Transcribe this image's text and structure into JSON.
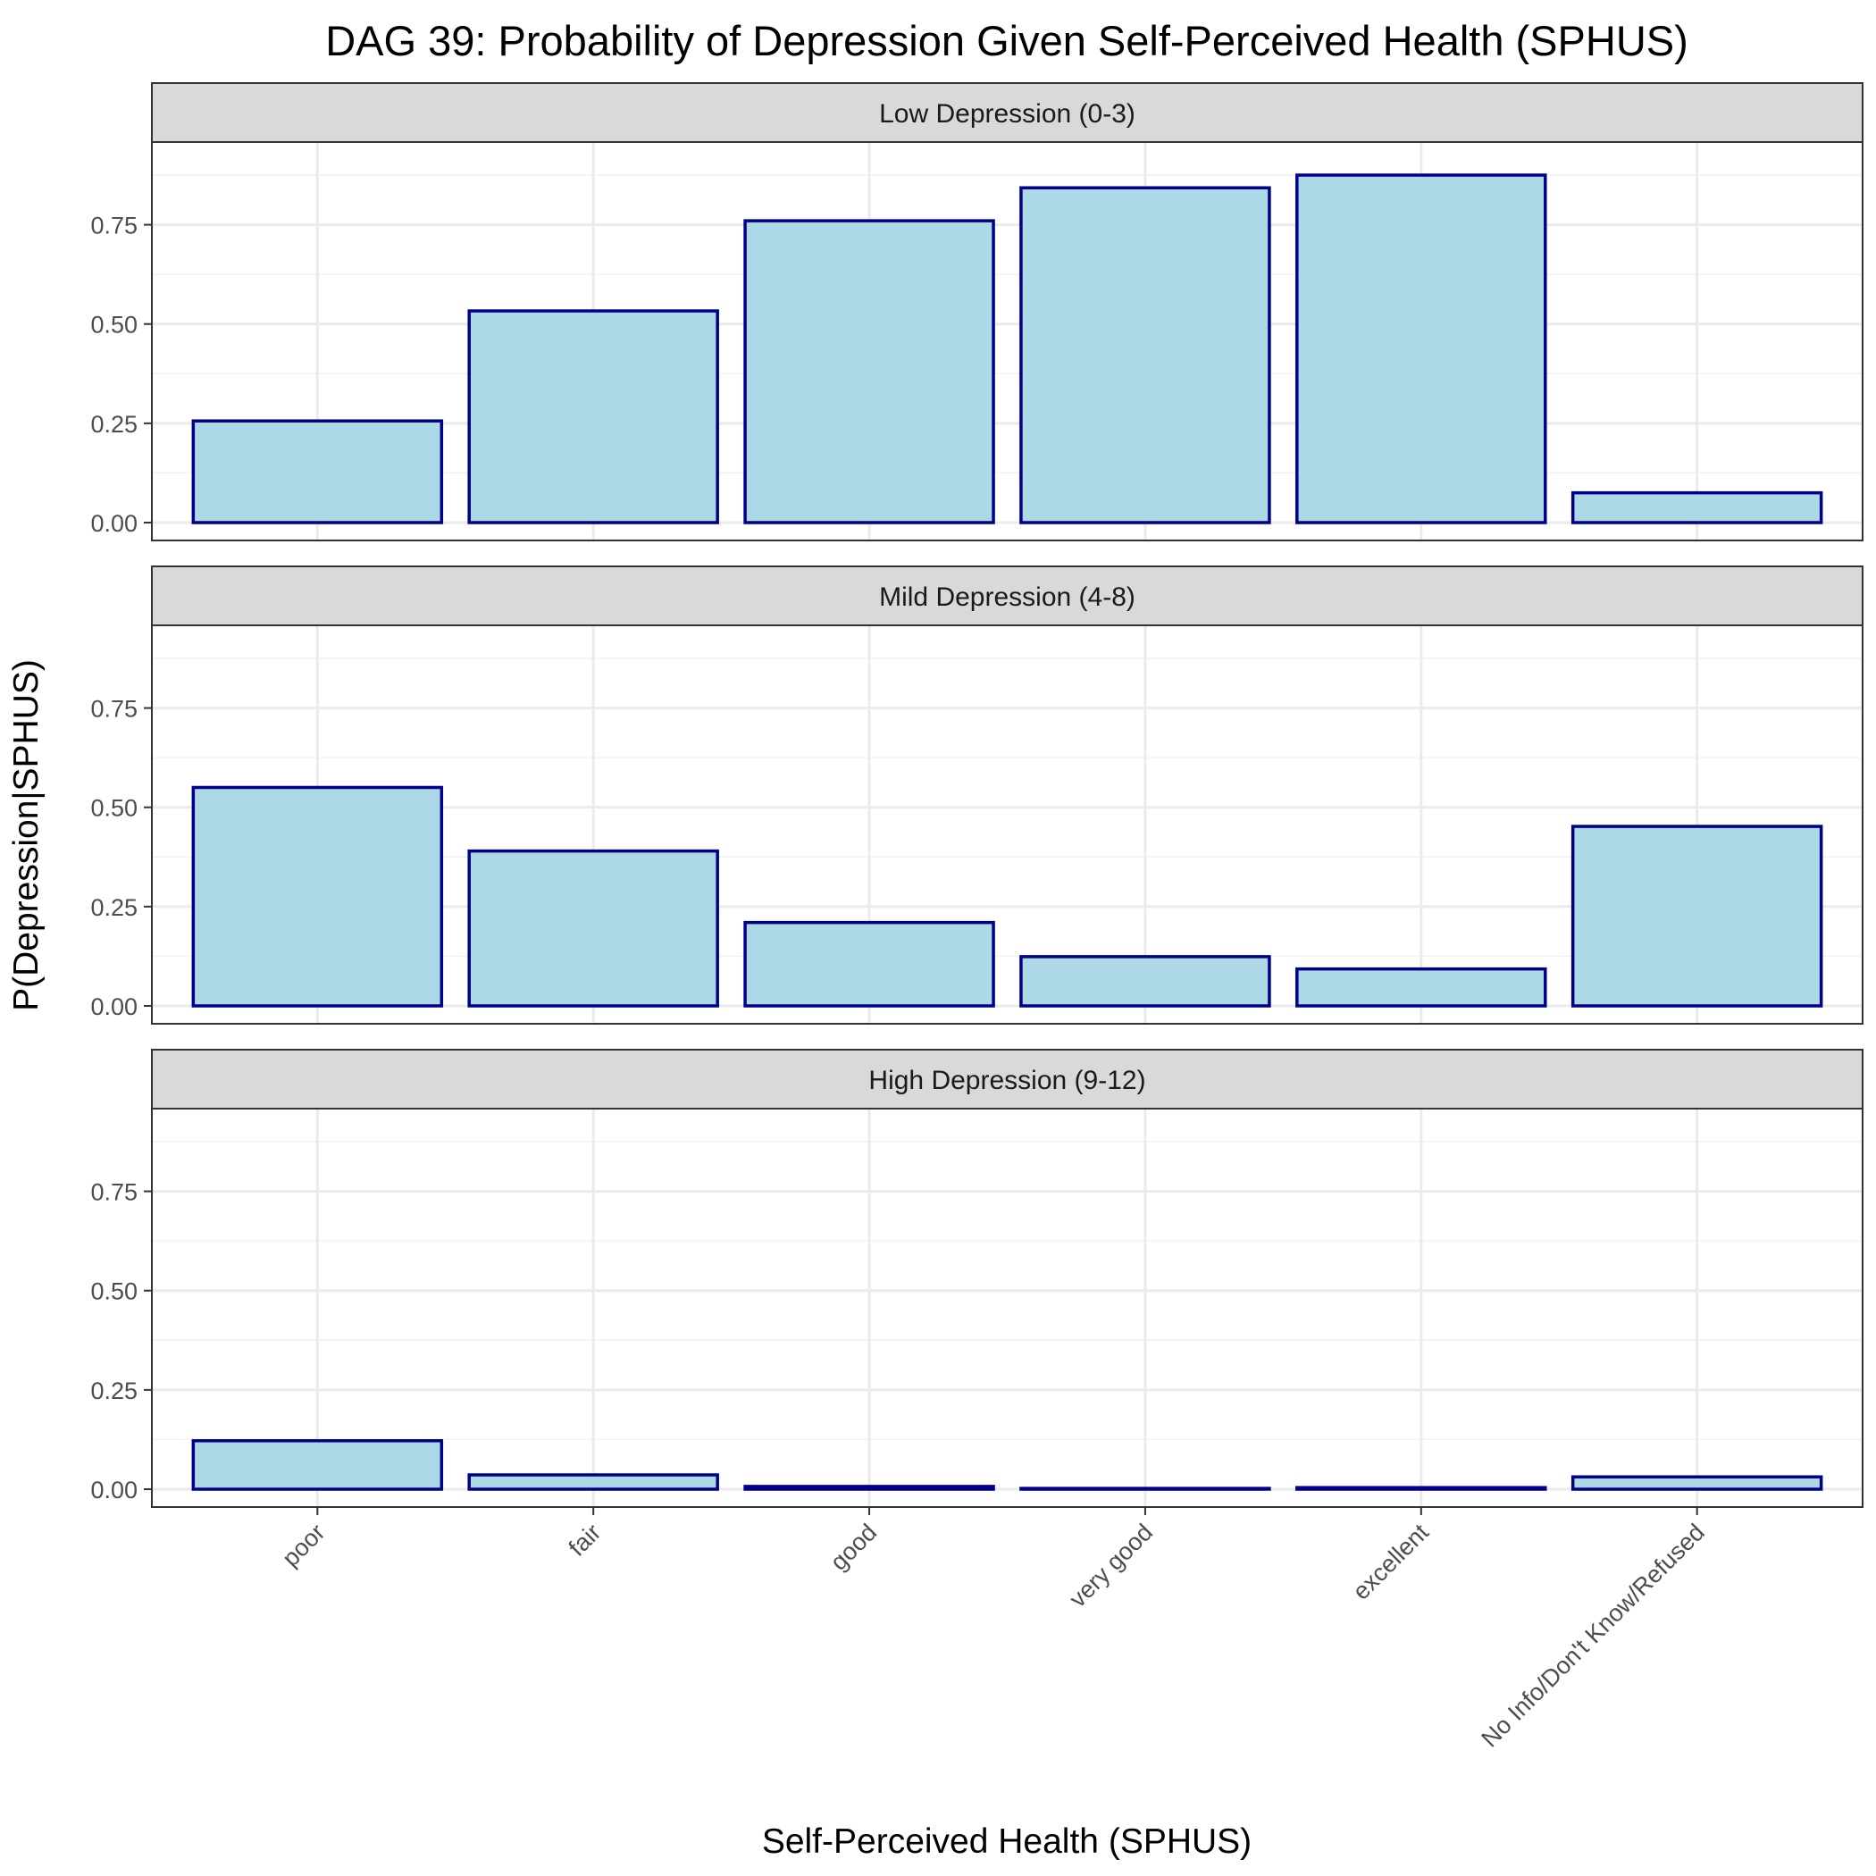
{
  "chart_data": {
    "type": "bar",
    "title": "DAG 39: Probability of Depression Given Self-Perceived Health (SPHUS)",
    "xlabel": "Self-Perceived Health (SPHUS)",
    "ylabel": "P(Depression|SPHUS)",
    "categories": [
      "poor",
      "fair",
      "good",
      "very good",
      "excellent",
      "No Info/Don't Know/Refused"
    ],
    "ylim": [
      0,
      0.92
    ],
    "yticks": [
      0.0,
      0.25,
      0.5,
      0.75
    ],
    "ytick_labels": [
      "0.00",
      "0.25",
      "0.50",
      "0.75"
    ],
    "grid": true,
    "facets": [
      {
        "name": "Low Depression (0-3)",
        "values": [
          0.256,
          0.533,
          0.76,
          0.843,
          0.875,
          0.075
        ]
      },
      {
        "name": "Mild Depression (4-8)",
        "values": [
          0.55,
          0.39,
          0.21,
          0.124,
          0.093,
          0.452
        ]
      },
      {
        "name": "High Depression (9-12)",
        "values": [
          0.122,
          0.036,
          0.007,
          0.002,
          0.004,
          0.031
        ]
      }
    ],
    "colors": {
      "bar_fill": "#add8e6",
      "bar_outline": "#00008b",
      "strip_fill": "#d9d9d9",
      "grid": "#ebebeb"
    }
  }
}
